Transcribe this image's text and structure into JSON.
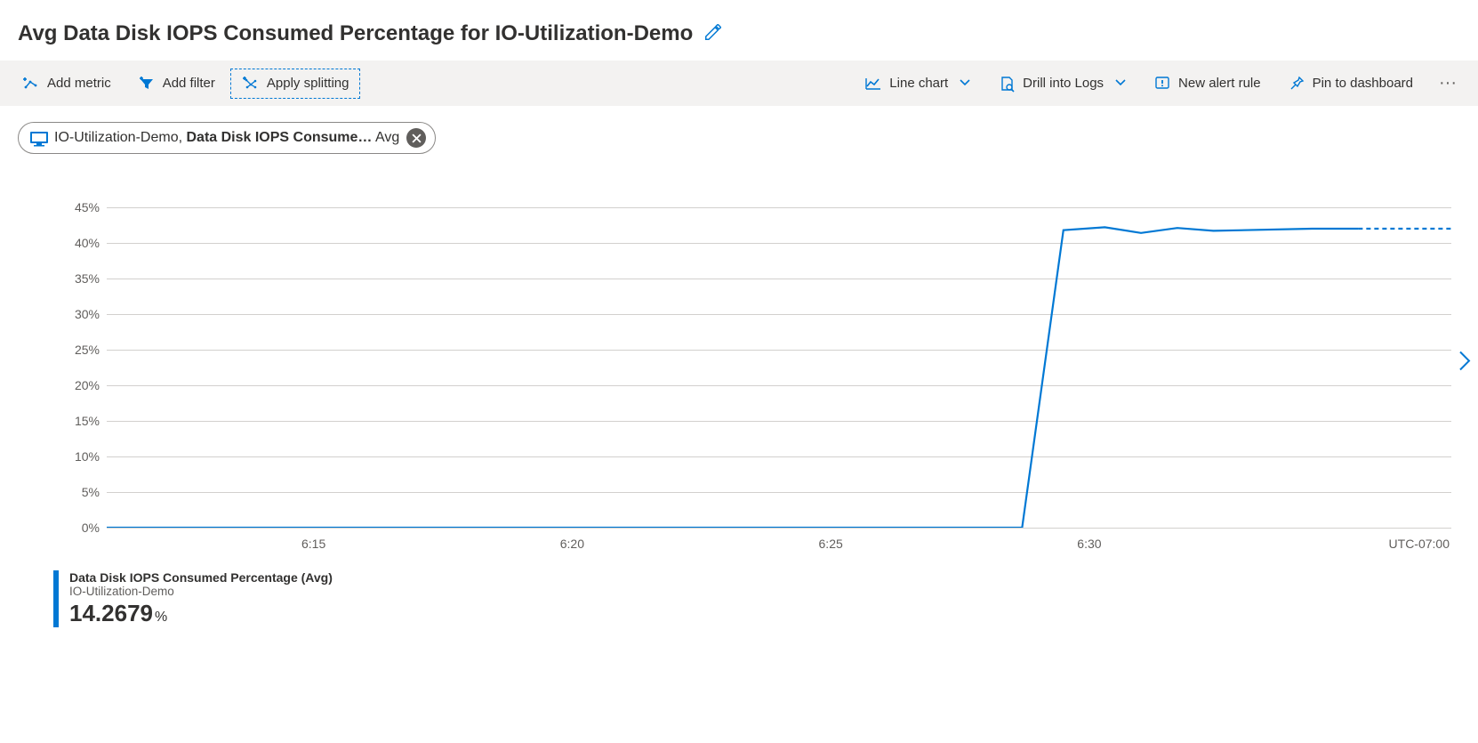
{
  "header": {
    "title": "Avg Data Disk IOPS Consumed Percentage for IO-Utilization-Demo"
  },
  "toolbar": {
    "add_metric": "Add metric",
    "add_filter": "Add filter",
    "apply_splitting": "Apply splitting",
    "line_chart": "Line chart",
    "drill_logs": "Drill into Logs",
    "new_alert": "New alert rule",
    "pin_dashboard": "Pin to dashboard"
  },
  "pill": {
    "resource": "IO-Utilization-Demo, ",
    "metric": "Data Disk IOPS Consume…",
    "aggregation": " Avg"
  },
  "chart": {
    "type": "line",
    "line_color": "#0078d4",
    "line_width": 2.2,
    "grid_color": "#d2d0ce",
    "background_color": "#ffffff",
    "ylim": [
      0,
      45
    ],
    "ytick_step": 5,
    "yticks": [
      "0%",
      "5%",
      "10%",
      "15%",
      "20%",
      "25%",
      "30%",
      "35%",
      "40%",
      "45%"
    ],
    "x_start_min": 611,
    "x_end_min": 637,
    "xticks": [
      {
        "min": 615,
        "label": "6:15"
      },
      {
        "min": 620,
        "label": "6:20"
      },
      {
        "min": 625,
        "label": "6:25"
      },
      {
        "min": 630,
        "label": "6:30"
      }
    ],
    "timezone_label": "UTC-07:00",
    "series": [
      {
        "min": 611.0,
        "val": 0.0
      },
      {
        "min": 628.7,
        "val": 0.0
      },
      {
        "min": 629.5,
        "val": 41.8
      },
      {
        "min": 630.3,
        "val": 42.2
      },
      {
        "min": 631.0,
        "val": 41.4
      },
      {
        "min": 631.7,
        "val": 42.1
      },
      {
        "min": 632.4,
        "val": 41.7
      },
      {
        "min": 634.3,
        "val": 42.0
      },
      {
        "min": 635.2,
        "val": 42.0
      }
    ],
    "dashed_tail": [
      {
        "min": 635.2,
        "val": 42.0
      },
      {
        "min": 637.0,
        "val": 42.0
      }
    ]
  },
  "legend": {
    "title": "Data Disk IOPS Consumed Percentage (Avg)",
    "subtitle": "IO-Utilization-Demo",
    "value": "14.2679",
    "unit": "%",
    "bar_color": "#0078d4"
  }
}
